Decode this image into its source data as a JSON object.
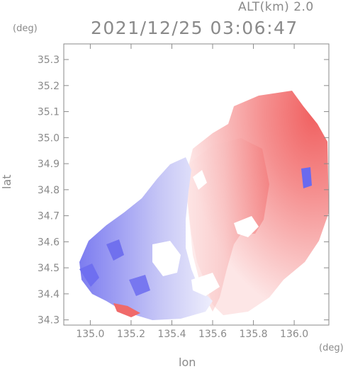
{
  "header": {
    "altitude_label": "ALT(km) 2.0",
    "datetime": "2021/12/25 03:06:47"
  },
  "colors": {
    "axis": "#8a8a8a",
    "negative": "#5a5af0",
    "positive": "#f07070",
    "neutral": "#ffffff"
  },
  "chart_data": {
    "type": "heatmap",
    "title": "2021/12/25 03:06:47",
    "subtitle": "ALT(km) 2.0",
    "xlabel": "lon",
    "ylabel": "lat",
    "x_unit": "(deg)",
    "y_unit": "(deg)",
    "xlim": [
      134.87,
      136.17
    ],
    "ylim": [
      34.28,
      35.36
    ],
    "x_ticks": [
      "135.0",
      "135.2",
      "135.4",
      "135.6",
      "135.8",
      "136.0"
    ],
    "y_ticks": [
      "34.3",
      "34.4",
      "34.5",
      "34.6",
      "34.7",
      "34.8",
      "34.9",
      "35.0",
      "35.1",
      "35.2",
      "35.3"
    ],
    "grid": false,
    "colormap": "blue-white-red diverging",
    "regions": [
      {
        "name": "receding (red) sector",
        "sign": "positive",
        "lon_range": [
          135.45,
          136.17
        ],
        "lat_range": [
          34.29,
          35.22
        ]
      },
      {
        "name": "approaching (blue) sector",
        "sign": "negative",
        "lon_range": [
          134.97,
          135.55
        ],
        "lat_range": [
          34.3,
          34.93
        ]
      }
    ]
  }
}
